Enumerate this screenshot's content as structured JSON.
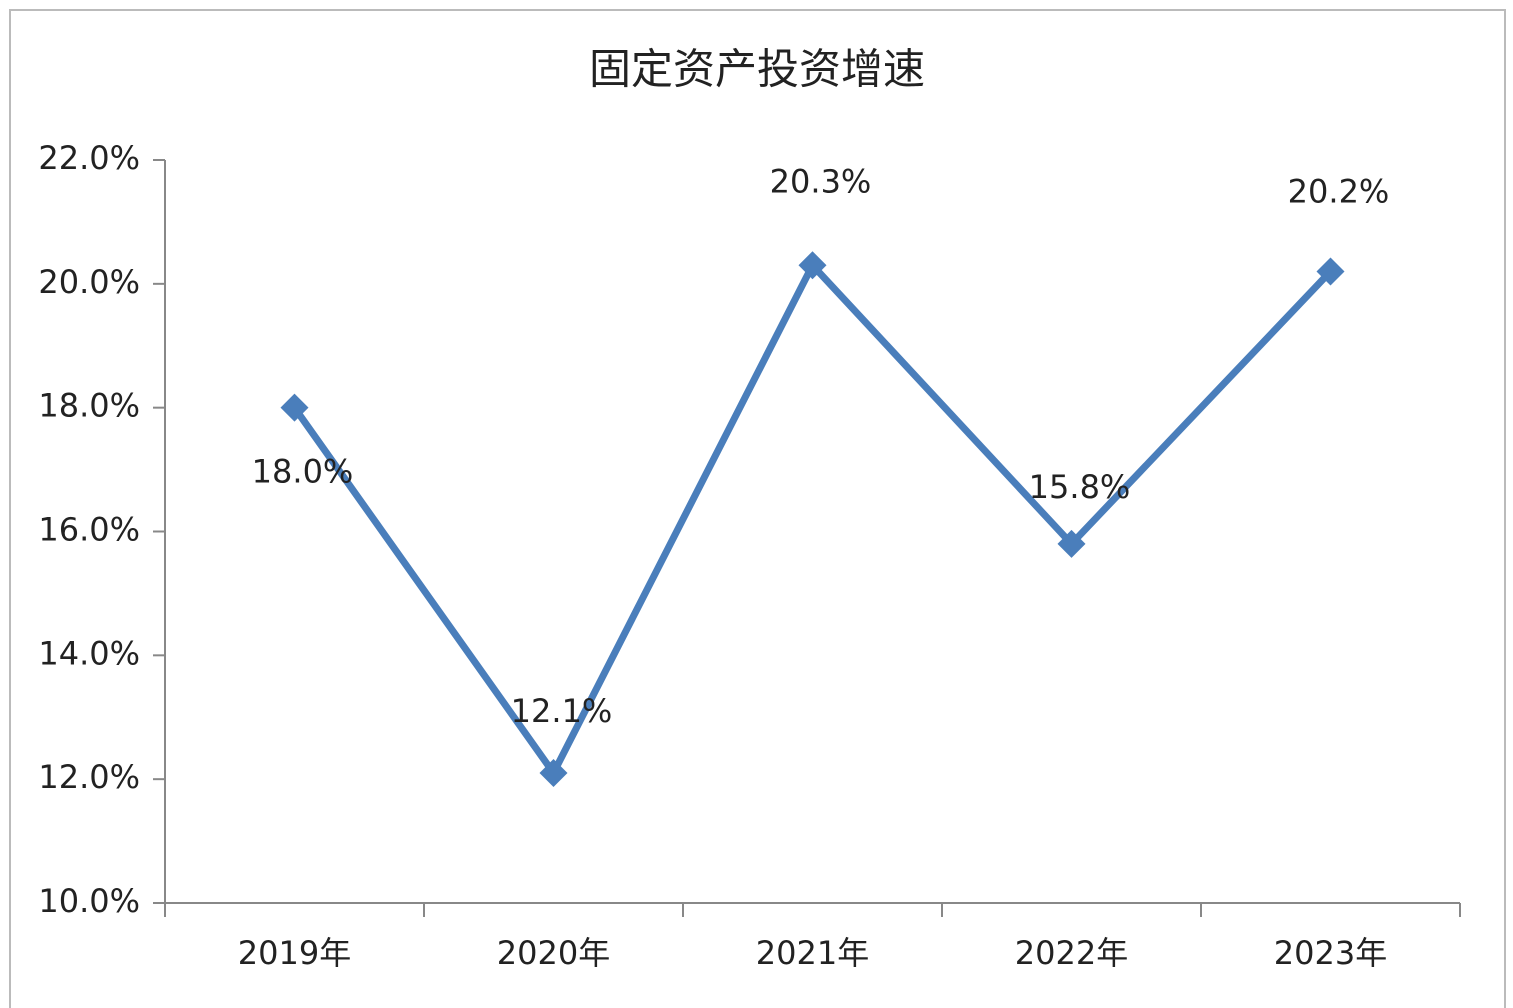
{
  "chart_data": {
    "type": "line",
    "title": "固定资产投资增速",
    "categories": [
      "2019年",
      "2020年",
      "2021年",
      "2022年",
      "2023年"
    ],
    "series": [
      {
        "name": "固定资产投资增速",
        "color": "#4a7ebb",
        "values": [
          18.0,
          12.1,
          20.3,
          15.8,
          20.2
        ],
        "value_labels": [
          "18.0%",
          "12.1%",
          "20.3%",
          "15.8%",
          "20.2%"
        ]
      }
    ],
    "ylim": [
      10,
      22
    ],
    "yticks": [
      {
        "value": 10,
        "label": "10.0%"
      },
      {
        "value": 12,
        "label": "12.0%"
      },
      {
        "value": 14,
        "label": "14.0%"
      },
      {
        "value": 16,
        "label": "16.0%"
      },
      {
        "value": 18,
        "label": "18.0%"
      },
      {
        "value": 20,
        "label": "20.0%"
      },
      {
        "value": 22,
        "label": "22.0%"
      }
    ],
    "grid": false
  }
}
